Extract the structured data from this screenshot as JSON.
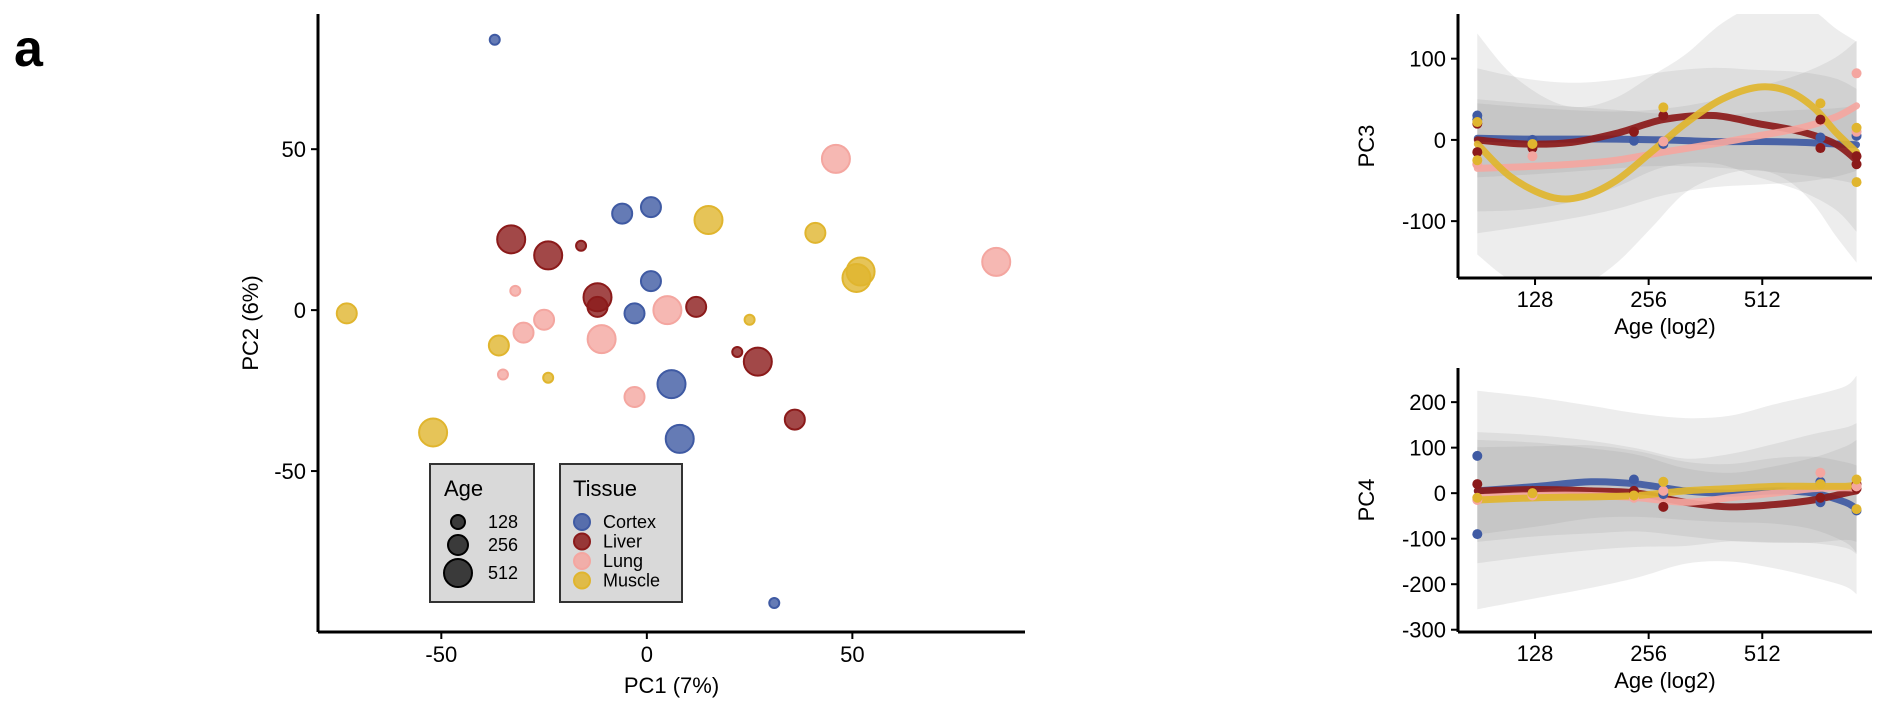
{
  "panel_label": "a",
  "colors": {
    "Cortex": "#3f5aa3",
    "Liver": "#8b1a1a",
    "Lung": "#f4a6a0",
    "Muscle": "#e0b52e"
  },
  "chart_data": [
    {
      "type": "scatter",
      "xlabel": "PC1 (7%)",
      "ylabel": "PC2 (6%)",
      "xlim": [
        -80,
        92
      ],
      "ylim": [
        -100,
        92
      ],
      "xticks": [
        -50,
        0,
        50
      ],
      "yticks": [
        -50,
        0,
        50
      ],
      "legend_age": {
        "title": "Age",
        "entries": [
          "128",
          "256",
          "512"
        ]
      },
      "legend_tissue": {
        "title": "Tissue",
        "entries": [
          "Cortex",
          "Liver",
          "Lung",
          "Muscle"
        ]
      },
      "points": [
        {
          "tissue": "Cortex",
          "age": 128,
          "x": -37,
          "y": 84
        },
        {
          "tissue": "Cortex",
          "age": 128,
          "x": 31,
          "y": -91
        },
        {
          "tissue": "Cortex",
          "age": 256,
          "x": -6,
          "y": 30
        },
        {
          "tissue": "Cortex",
          "age": 256,
          "x": 1,
          "y": 32
        },
        {
          "tissue": "Cortex",
          "age": 256,
          "x": 1,
          "y": 9
        },
        {
          "tissue": "Cortex",
          "age": 256,
          "x": -3,
          "y": -1
        },
        {
          "tissue": "Cortex",
          "age": 512,
          "x": 6,
          "y": -23
        },
        {
          "tissue": "Cortex",
          "age": 512,
          "x": 8,
          "y": -40
        },
        {
          "tissue": "Liver",
          "age": 128,
          "x": -16,
          "y": 20
        },
        {
          "tissue": "Liver",
          "age": 128,
          "x": 22,
          "y": -13
        },
        {
          "tissue": "Liver",
          "age": 256,
          "x": -12,
          "y": 1
        },
        {
          "tissue": "Liver",
          "age": 256,
          "x": 12,
          "y": 1
        },
        {
          "tissue": "Liver",
          "age": 256,
          "x": 36,
          "y": -34
        },
        {
          "tissue": "Liver",
          "age": 512,
          "x": -33,
          "y": 22
        },
        {
          "tissue": "Liver",
          "age": 512,
          "x": -24,
          "y": 17
        },
        {
          "tissue": "Liver",
          "age": 512,
          "x": -12,
          "y": 4
        },
        {
          "tissue": "Liver",
          "age": 512,
          "x": 27,
          "y": -16
        },
        {
          "tissue": "Lung",
          "age": 128,
          "x": -32,
          "y": 6
        },
        {
          "tissue": "Lung",
          "age": 128,
          "x": -35,
          "y": -20
        },
        {
          "tissue": "Lung",
          "age": 256,
          "x": -30,
          "y": -7
        },
        {
          "tissue": "Lung",
          "age": 256,
          "x": -25,
          "y": -3
        },
        {
          "tissue": "Lung",
          "age": 256,
          "x": -3,
          "y": -27
        },
        {
          "tissue": "Lung",
          "age": 512,
          "x": -11,
          "y": -9
        },
        {
          "tissue": "Lung",
          "age": 512,
          "x": 5,
          "y": 0
        },
        {
          "tissue": "Lung",
          "age": 512,
          "x": 46,
          "y": 47
        },
        {
          "tissue": "Lung",
          "age": 512,
          "x": 85,
          "y": 15
        },
        {
          "tissue": "Muscle",
          "age": 128,
          "x": 25,
          "y": -3
        },
        {
          "tissue": "Muscle",
          "age": 128,
          "x": -24,
          "y": -21
        },
        {
          "tissue": "Muscle",
          "age": 256,
          "x": -73,
          "y": -1
        },
        {
          "tissue": "Muscle",
          "age": 256,
          "x": -36,
          "y": -11
        },
        {
          "tissue": "Muscle",
          "age": 256,
          "x": 41,
          "y": 24
        },
        {
          "tissue": "Muscle",
          "age": 512,
          "x": -52,
          "y": -38
        },
        {
          "tissue": "Muscle",
          "age": 512,
          "x": 15,
          "y": 28
        },
        {
          "tissue": "Muscle",
          "age": 512,
          "x": 52,
          "y": 12
        },
        {
          "tissue": "Muscle",
          "age": 512,
          "x": 51,
          "y": 10
        }
      ]
    },
    {
      "type": "line",
      "xlabel": "Age (log2)",
      "ylabel": "PC3",
      "xscale": "log2",
      "xlim": [
        80,
        1000
      ],
      "ylim": [
        -170,
        155
      ],
      "xticks": [
        128,
        256,
        512
      ],
      "yticks": [
        -100,
        0,
        100
      ],
      "series": [
        {
          "tissue": "Cortex",
          "curve_x": [
            90,
            120,
            160,
            210,
            280,
            380,
            500,
            650,
            800,
            910
          ],
          "curve_y": [
            2,
            1,
            1,
            1,
            0,
            -2,
            -2,
            -3,
            -5,
            -6
          ],
          "band_half": 30,
          "points": [
            [
              90,
              30
            ],
            [
              90,
              25
            ],
            [
              126,
              0
            ],
            [
              234,
              -1
            ],
            [
              280,
              -5
            ],
            [
              730,
              3
            ],
            [
              910,
              5
            ]
          ]
        },
        {
          "tissue": "Liver",
          "curve_x": [
            90,
            120,
            160,
            210,
            280,
            380,
            500,
            650,
            800,
            910
          ],
          "curve_y": [
            0,
            -5,
            -3,
            8,
            25,
            30,
            20,
            10,
            -5,
            -25
          ],
          "band_half": 55,
          "points": [
            [
              90,
              -15
            ],
            [
              90,
              20
            ],
            [
              126,
              -10
            ],
            [
              234,
              10
            ],
            [
              280,
              30
            ],
            [
              730,
              25
            ],
            [
              730,
              -10
            ],
            [
              910,
              -30
            ],
            [
              910,
              -20
            ]
          ]
        },
        {
          "tissue": "Lung",
          "curve_x": [
            90,
            120,
            160,
            210,
            280,
            380,
            500,
            650,
            800,
            910
          ],
          "curve_y": [
            -35,
            -33,
            -30,
            -25,
            -15,
            -5,
            5,
            15,
            28,
            42
          ],
          "band_half": 50,
          "points": [
            [
              90,
              -30
            ],
            [
              126,
              -20
            ],
            [
              280,
              -2
            ],
            [
              730,
              45
            ],
            [
              910,
              82
            ],
            [
              910,
              10
            ]
          ]
        },
        {
          "tissue": "Muscle",
          "curve_x": [
            90,
            110,
            140,
            170,
            210,
            260,
            320,
            400,
            500,
            600,
            700,
            800,
            910
          ],
          "curve_y": [
            -5,
            -45,
            -70,
            -70,
            -50,
            -15,
            20,
            50,
            65,
            60,
            40,
            10,
            -15
          ],
          "band_half": 85,
          "points": [
            [
              90,
              22
            ],
            [
              90,
              -25
            ],
            [
              126,
              -5
            ],
            [
              280,
              40
            ],
            [
              730,
              45
            ],
            [
              910,
              15
            ],
            [
              910,
              -52
            ]
          ]
        }
      ]
    },
    {
      "type": "line",
      "xlabel": "Age (log2)",
      "ylabel": "PC4",
      "xscale": "log2",
      "xlim": [
        80,
        1000
      ],
      "ylim": [
        -305,
        275
      ],
      "xticks": [
        128,
        256,
        512
      ],
      "yticks": [
        -300,
        -200,
        -100,
        0,
        100,
        200
      ],
      "series": [
        {
          "tissue": "Cortex",
          "curve_x": [
            90,
            130,
            180,
            240,
            320,
            420,
            550,
            700,
            850,
            910
          ],
          "curve_y": [
            5,
            15,
            25,
            20,
            5,
            0,
            5,
            0,
            -20,
            -35
          ],
          "band_half": 60,
          "points": [
            [
              90,
              82
            ],
            [
              90,
              -90
            ],
            [
              126,
              5
            ],
            [
              234,
              30
            ],
            [
              280,
              -2
            ],
            [
              730,
              25
            ],
            [
              730,
              -20
            ],
            [
              910,
              -38
            ]
          ]
        },
        {
          "tissue": "Liver",
          "curve_x": [
            90,
            130,
            180,
            240,
            320,
            420,
            550,
            700,
            850,
            910
          ],
          "curve_y": [
            5,
            8,
            5,
            0,
            -20,
            -30,
            -25,
            -15,
            0,
            5
          ],
          "band_half": 70,
          "points": [
            [
              90,
              20
            ],
            [
              126,
              5
            ],
            [
              234,
              5
            ],
            [
              280,
              -30
            ],
            [
              730,
              -10
            ],
            [
              910,
              20
            ],
            [
              910,
              10
            ]
          ]
        },
        {
          "tissue": "Lung",
          "curve_x": [
            90,
            130,
            180,
            240,
            320,
            420,
            550,
            700,
            850,
            910
          ],
          "curve_y": [
            -10,
            -5,
            -5,
            -10,
            -20,
            -10,
            0,
            10,
            12,
            10
          ],
          "band_half": 90,
          "points": [
            [
              90,
              -15
            ],
            [
              126,
              -5
            ],
            [
              234,
              -10
            ],
            [
              280,
              5
            ],
            [
              730,
              45
            ],
            [
              910,
              15
            ]
          ]
        },
        {
          "tissue": "Muscle",
          "curve_x": [
            90,
            130,
            180,
            240,
            320,
            420,
            550,
            700,
            850,
            910
          ],
          "curve_y": [
            -15,
            -10,
            -8,
            -5,
            5,
            10,
            15,
            15,
            15,
            18
          ],
          "band_half": 150,
          "points": [
            [
              90,
              -10
            ],
            [
              126,
              0
            ],
            [
              234,
              -5
            ],
            [
              280,
              25
            ],
            [
              730,
              20
            ],
            [
              910,
              30
            ],
            [
              910,
              -35
            ]
          ]
        }
      ]
    }
  ]
}
